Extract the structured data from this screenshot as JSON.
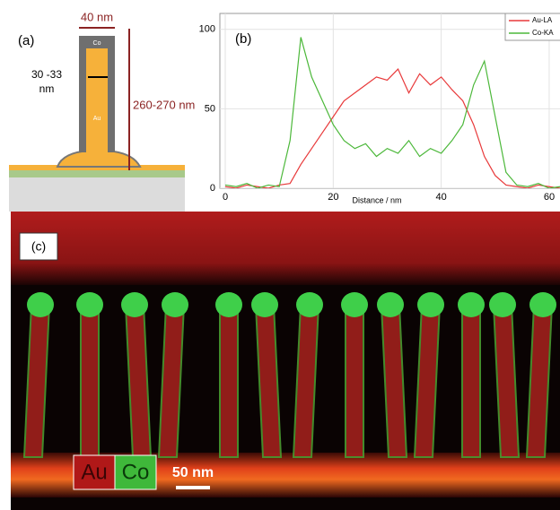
{
  "panel_a": {
    "label": "(a)",
    "width_label": "40 nm",
    "cap_label": "Co",
    "diameter_label": [
      "30 -33",
      "nm"
    ],
    "core_label": "Au",
    "height_label": "260-270 nm"
  },
  "chart_data": {
    "type": "line",
    "label": "(b)",
    "xlabel": "Distance / nm",
    "x": [
      0,
      2,
      4,
      6,
      8,
      10,
      12,
      14,
      16,
      18,
      20,
      22,
      24,
      26,
      28,
      30,
      32,
      34,
      36,
      38,
      40,
      42,
      44,
      46,
      48,
      50,
      52,
      54,
      56,
      58,
      60,
      62
    ],
    "series": [
      {
        "name": "Au-LA",
        "color": "#e8393a",
        "values": [
          1,
          0,
          2,
          1,
          0,
          2,
          3,
          15,
          25,
          35,
          45,
          55,
          60,
          65,
          70,
          68,
          75,
          60,
          72,
          65,
          70,
          62,
          55,
          40,
          20,
          8,
          2,
          1,
          0,
          2,
          1,
          0
        ]
      },
      {
        "name": "Co-KA",
        "color": "#4cb83a",
        "values": [
          2,
          1,
          3,
          0,
          2,
          1,
          30,
          95,
          70,
          55,
          40,
          30,
          25,
          28,
          20,
          25,
          22,
          30,
          20,
          25,
          22,
          30,
          40,
          65,
          80,
          45,
          10,
          2,
          1,
          3,
          0,
          1
        ]
      }
    ],
    "xlim": [
      -1,
      63
    ],
    "xticks": [
      0,
      20,
      40,
      60
    ],
    "ylim": [
      0,
      110
    ],
    "yticks": [
      0,
      50,
      100
    ],
    "grid": true
  },
  "panel_c": {
    "label": "(c)",
    "legend": [
      "Au",
      "Co"
    ],
    "scale_label": "50 nm"
  }
}
